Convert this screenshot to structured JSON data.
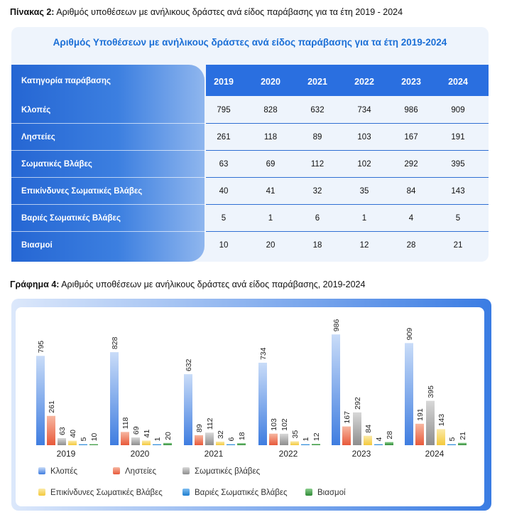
{
  "caption_table": {
    "bold": "Πίνακας 2:",
    "text": " Αριθμός υποθέσεων με ανήλικους δράστες ανά είδος παράβασης για τα έτη 2019 - 2024"
  },
  "table": {
    "title": "Αριθμός Υποθέσεων με ανήλικους δράστες ανά είδος παράβασης για τα έτη 2019-2024",
    "header_category": "Κατηγορία παράβασης",
    "years": [
      "2019",
      "2020",
      "2021",
      "2022",
      "2023",
      "2024"
    ],
    "rows": [
      {
        "label": "Κλοπές",
        "values": [
          "795",
          "828",
          "632",
          "734",
          "986",
          "909"
        ]
      },
      {
        "label": "Ληστείες",
        "values": [
          "261",
          "118",
          "89",
          "103",
          "167",
          "191"
        ]
      },
      {
        "label": "Σωματικές Βλάβες",
        "values": [
          "63",
          "69",
          "112",
          "102",
          "292",
          "395"
        ]
      },
      {
        "label": "Επικίνδυνες Σωματικές Βλάβες",
        "values": [
          "40",
          "41",
          "32",
          "35",
          "84",
          "143"
        ]
      },
      {
        "label": "Βαριές Σωματικές Βλάβες",
        "values": [
          "5",
          "1",
          "6",
          "1",
          "4",
          "5"
        ]
      },
      {
        "label": "Βιασμοί",
        "values": [
          "10",
          "20",
          "18",
          "12",
          "28",
          "21"
        ]
      }
    ]
  },
  "caption_chart": {
    "bold": "Γράφημα 4:",
    "text": " Αριθμός υποθέσεων με ανήλικους δράστες ανά είδος παράβασης, 2019-2024"
  },
  "chart_data": {
    "type": "bar",
    "categories": [
      "2019",
      "2020",
      "2021",
      "2022",
      "2023",
      "2024"
    ],
    "series": [
      {
        "name": "Κλοπές",
        "values": [
          795,
          828,
          632,
          734,
          986,
          909
        ],
        "color": "#7ea9ec"
      },
      {
        "name": "Ληστείες",
        "values": [
          261,
          118,
          89,
          103,
          167,
          191
        ],
        "color": "#ee7f5e"
      },
      {
        "name": "Σωματικές βλάβες",
        "values": [
          63,
          69,
          112,
          102,
          292,
          395
        ],
        "color": "#a9a9a9"
      },
      {
        "name": "Επικίνδυνες Σωματικές Βλάβες",
        "values": [
          40,
          41,
          32,
          35,
          84,
          143
        ],
        "color": "#f7d86a"
      },
      {
        "name": "Βαριές Σωματικές Βλάβες",
        "values": [
          5,
          1,
          6,
          1,
          4,
          5
        ],
        "color": "#3b93d9"
      },
      {
        "name": "Βιασμοί",
        "values": [
          10,
          20,
          18,
          12,
          28,
          21
        ],
        "color": "#4a9e4f"
      }
    ],
    "ylim": [
      0,
      1000
    ],
    "legend": "bottom",
    "grid": false
  }
}
